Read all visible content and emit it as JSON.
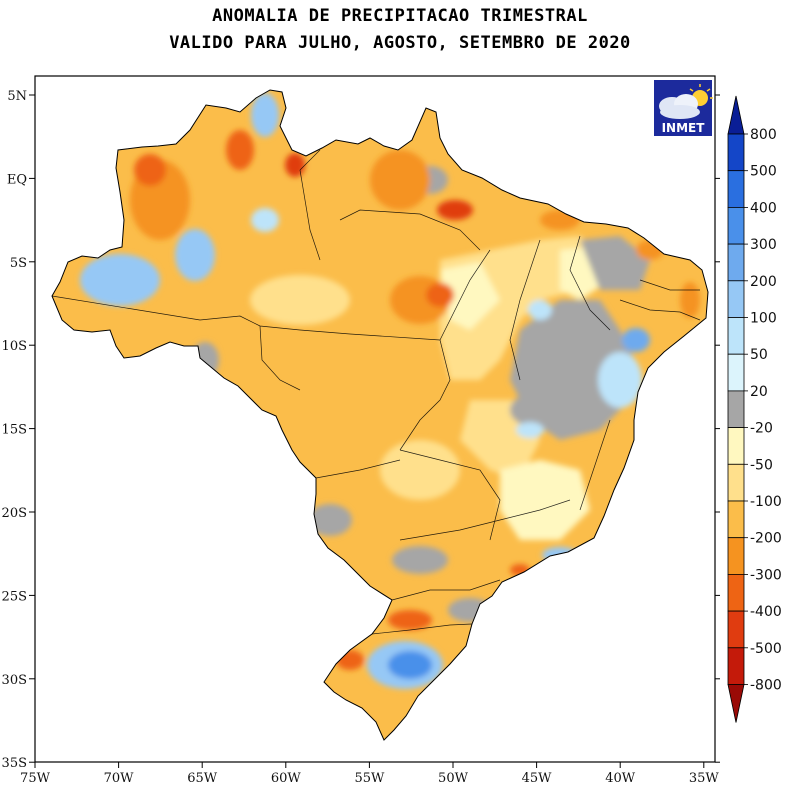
{
  "title_line1": "ANOMALIA DE PRECIPITACAO TRIMESTRAL",
  "title_line2": "VALIDO PARA JULHO, AGOSTO, SETEMBRO DE 2020",
  "logo_text": "INMET",
  "axes": {
    "lat_labels": [
      "5N",
      "EQ",
      "5S",
      "10S",
      "15S",
      "20S",
      "25S",
      "30S",
      "35S"
    ],
    "lon_labels": [
      "75W",
      "70W",
      "65W",
      "60W",
      "55W",
      "50W",
      "45W",
      "40W",
      "35W"
    ]
  },
  "colorbar": {
    "labels": [
      "800",
      "500",
      "400",
      "300",
      "200",
      "100",
      "50",
      "20",
      "-20",
      "-50",
      "-100",
      "-200",
      "-300",
      "-400",
      "-500",
      "-800"
    ],
    "colors": [
      "#0a1e96",
      "#1446c8",
      "#2a6fe0",
      "#4a90ea",
      "#6eaaee",
      "#96c8f5",
      "#bde4fa",
      "#dcf4fc",
      "#a6a6a6",
      "#fff8c0",
      "#ffe08c",
      "#fbbd4a",
      "#f59320",
      "#ee6414",
      "#e03c10",
      "#c41a0a",
      "#9a0a06"
    ]
  }
}
